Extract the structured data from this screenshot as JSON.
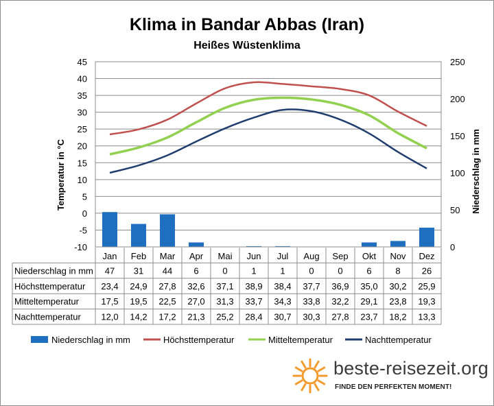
{
  "title": "Klima in Bandar Abbas (Iran)",
  "subtitle": "Heißes Wüstenklima",
  "brand": {
    "name": "beste-reisezeit.org",
    "tagline": "FINDE DEN PERFEKTEN MOMENT!"
  },
  "chart_data": {
    "type": "bar",
    "categories": [
      "Jan",
      "Feb",
      "Mar",
      "Apr",
      "Mai",
      "Jun",
      "Jul",
      "Aug",
      "Sep",
      "Okt",
      "Nov",
      "Dez"
    ],
    "ylabel_left": "Temperatur in °C",
    "ylabel_right": "Niederschlag in mm",
    "ylim_left": [
      -10,
      45
    ],
    "yticks_left": [
      "45",
      "40",
      "35",
      "30",
      "25",
      "20",
      "15",
      "10",
      "5",
      "0",
      "-5",
      "-10"
    ],
    "ylim_right": [
      0,
      250
    ],
    "yticks_right": [
      "250",
      "200",
      "150",
      "100",
      "50",
      "0"
    ],
    "grid": true,
    "legend_position": "bottom",
    "series": [
      {
        "name": "Niederschlag in mm",
        "kind": "bar",
        "color": "#1f6fc0",
        "values": [
          47,
          31,
          44,
          6,
          0,
          1,
          1,
          0,
          0,
          6,
          8,
          26
        ],
        "display": [
          "47",
          "31",
          "44",
          "6",
          "0",
          "1",
          "1",
          "0",
          "0",
          "6",
          "8",
          "26"
        ]
      },
      {
        "name": "Höchsttemperatur",
        "kind": "line",
        "color": "#c0504d",
        "values": [
          23.4,
          24.9,
          27.8,
          32.6,
          37.1,
          38.9,
          38.4,
          37.7,
          36.9,
          35.0,
          30.2,
          25.9
        ],
        "display": [
          "23,4",
          "24,9",
          "27,8",
          "32,6",
          "37,1",
          "38,9",
          "38,4",
          "37,7",
          "36,9",
          "35,0",
          "30,2",
          "25,9"
        ]
      },
      {
        "name": "Mitteltemperatur",
        "kind": "line",
        "color": "#92d050",
        "values": [
          17.5,
          19.5,
          22.5,
          27.0,
          31.3,
          33.7,
          34.3,
          33.8,
          32.2,
          29.1,
          23.8,
          19.3
        ],
        "display": [
          "17,5",
          "19,5",
          "22,5",
          "27,0",
          "31,3",
          "33,7",
          "34,3",
          "33,8",
          "32,2",
          "29,1",
          "23,8",
          "19,3"
        ]
      },
      {
        "name": "Nachttemperatur",
        "kind": "line",
        "color": "#1f3d6e",
        "values": [
          12.0,
          14.2,
          17.2,
          21.3,
          25.2,
          28.4,
          30.7,
          30.3,
          27.8,
          23.7,
          18.2,
          13.3
        ],
        "display": [
          "12,0",
          "14,2",
          "17,2",
          "21,3",
          "25,2",
          "28,4",
          "30,7",
          "30,3",
          "27,8",
          "23,7",
          "18,2",
          "13,3"
        ]
      }
    ]
  }
}
